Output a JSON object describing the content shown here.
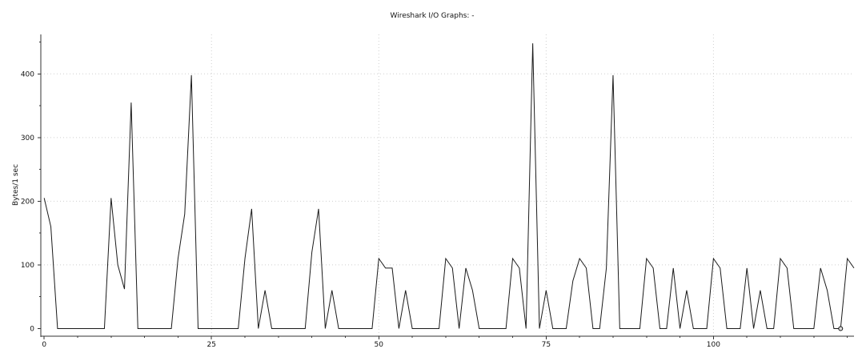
{
  "window": {
    "title": "Wireshark I/O Graphs: -"
  },
  "chart_data": {
    "type": "line",
    "title": "Wireshark I/O Graphs: -",
    "xlabel": "",
    "ylabel": "Bytes/1 sec",
    "xlim": [
      -0.5,
      121
    ],
    "ylim": [
      -12,
      462
    ],
    "x_ticks": [
      0,
      25,
      50,
      75,
      100
    ],
    "y_ticks": [
      0,
      100,
      200,
      300,
      400
    ],
    "grid": true,
    "legend": "none",
    "series": [
      {
        "values": [
          [
            0,
            205
          ],
          [
            1,
            160
          ],
          [
            2,
            0
          ],
          [
            3,
            0
          ],
          [
            4,
            0
          ],
          [
            5,
            0
          ],
          [
            6,
            0
          ],
          [
            7,
            0
          ],
          [
            8,
            0
          ],
          [
            9,
            0
          ],
          [
            10,
            205
          ],
          [
            11,
            100
          ],
          [
            12,
            62
          ],
          [
            13,
            355
          ],
          [
            14,
            0
          ],
          [
            15,
            0
          ],
          [
            16,
            0
          ],
          [
            17,
            0
          ],
          [
            18,
            0
          ],
          [
            19,
            0
          ],
          [
            20,
            110
          ],
          [
            21,
            180
          ],
          [
            22,
            398
          ],
          [
            23,
            0
          ],
          [
            24,
            0
          ],
          [
            25,
            0
          ],
          [
            26,
            0
          ],
          [
            27,
            0
          ],
          [
            28,
            0
          ],
          [
            29,
            0
          ],
          [
            30,
            110
          ],
          [
            31,
            188
          ],
          [
            32,
            0
          ],
          [
            33,
            60
          ],
          [
            34,
            0
          ],
          [
            35,
            0
          ],
          [
            36,
            0
          ],
          [
            37,
            0
          ],
          [
            38,
            0
          ],
          [
            39,
            0
          ],
          [
            40,
            120
          ],
          [
            41,
            188
          ],
          [
            42,
            0
          ],
          [
            43,
            60
          ],
          [
            44,
            0
          ],
          [
            45,
            0
          ],
          [
            46,
            0
          ],
          [
            47,
            0
          ],
          [
            48,
            0
          ],
          [
            49,
            0
          ],
          [
            50,
            110
          ],
          [
            51,
            95
          ],
          [
            52,
            95
          ],
          [
            53,
            0
          ],
          [
            54,
            60
          ],
          [
            55,
            0
          ],
          [
            56,
            0
          ],
          [
            57,
            0
          ],
          [
            58,
            0
          ],
          [
            59,
            0
          ],
          [
            60,
            110
          ],
          [
            61,
            95
          ],
          [
            62,
            0
          ],
          [
            63,
            95
          ],
          [
            64,
            60
          ],
          [
            65,
            0
          ],
          [
            66,
            0
          ],
          [
            67,
            0
          ],
          [
            68,
            0
          ],
          [
            69,
            0
          ],
          [
            70,
            110
          ],
          [
            71,
            95
          ],
          [
            72,
            0
          ],
          [
            73,
            448
          ],
          [
            74,
            0
          ],
          [
            75,
            60
          ],
          [
            76,
            0
          ],
          [
            77,
            0
          ],
          [
            78,
            0
          ],
          [
            79,
            75
          ],
          [
            80,
            110
          ],
          [
            81,
            95
          ],
          [
            82,
            0
          ],
          [
            83,
            0
          ],
          [
            84,
            95
          ],
          [
            85,
            398
          ],
          [
            86,
            0
          ],
          [
            87,
            0
          ],
          [
            88,
            0
          ],
          [
            89,
            0
          ],
          [
            90,
            110
          ],
          [
            91,
            95
          ],
          [
            92,
            0
          ],
          [
            93,
            0
          ],
          [
            94,
            95
          ],
          [
            95,
            0
          ],
          [
            96,
            60
          ],
          [
            97,
            0
          ],
          [
            98,
            0
          ],
          [
            99,
            0
          ],
          [
            100,
            110
          ],
          [
            101,
            95
          ],
          [
            102,
            0
          ],
          [
            103,
            0
          ],
          [
            104,
            0
          ],
          [
            105,
            95
          ],
          [
            106,
            0
          ],
          [
            107,
            60
          ],
          [
            108,
            0
          ],
          [
            109,
            0
          ],
          [
            110,
            110
          ],
          [
            111,
            95
          ],
          [
            112,
            0
          ],
          [
            113,
            0
          ],
          [
            114,
            0
          ],
          [
            115,
            0
          ],
          [
            116,
            95
          ],
          [
            117,
            60
          ],
          [
            118,
            0
          ],
          [
            119,
            0
          ],
          [
            120,
            110
          ],
          [
            121,
            95
          ]
        ],
        "highlight_point": [
          119,
          0
        ]
      }
    ]
  }
}
